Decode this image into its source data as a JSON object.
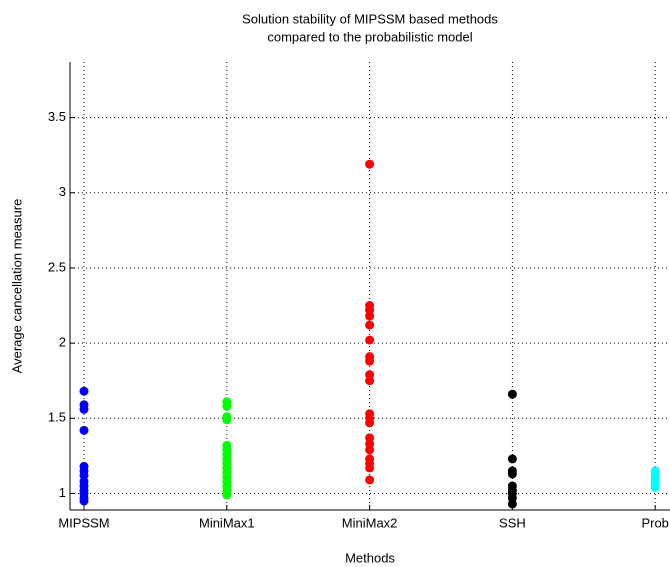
{
  "chart_data": {
    "type": "scatter",
    "title": [
      "Solution stability of MIPSSM based methods",
      "compared to the probabilistic model"
    ],
    "xlabel": "Methods",
    "ylabel": "Average cancellation measure",
    "categories": [
      "MIPSSM",
      "MiniMax1",
      "MiniMax2",
      "SSH",
      "Prob"
    ],
    "colors": [
      "#0000ff",
      "#00ff00",
      "#ff0000",
      "#000000",
      "#00ffff"
    ],
    "values": [
      [
        1.68,
        1.59,
        1.56,
        1.42,
        1.18,
        1.15,
        1.12,
        1.08,
        1.05,
        1.02,
        1.0,
        0.97,
        0.95
      ],
      [
        1.61,
        1.58,
        1.51,
        1.49,
        1.32,
        1.29,
        1.26,
        1.23,
        1.2,
        1.17,
        1.14,
        1.11,
        1.08,
        1.05,
        1.02,
        0.99
      ],
      [
        3.19,
        2.25,
        2.22,
        2.18,
        2.12,
        2.02,
        1.91,
        1.88,
        1.79,
        1.75,
        1.53,
        1.5,
        1.47,
        1.37,
        1.33,
        1.29,
        1.23,
        1.2,
        1.17,
        1.09
      ],
      [
        1.66,
        1.23,
        1.15,
        1.13,
        1.05,
        1.02,
        1.0,
        0.97,
        0.93
      ],
      [
        1.15,
        1.12,
        1.1,
        1.08,
        1.06,
        1.04
      ]
    ],
    "ylim": [
      0.89,
      3.87
    ],
    "yticks": [
      1,
      1.5,
      2,
      2.5,
      3,
      3.5
    ],
    "grid": true
  }
}
